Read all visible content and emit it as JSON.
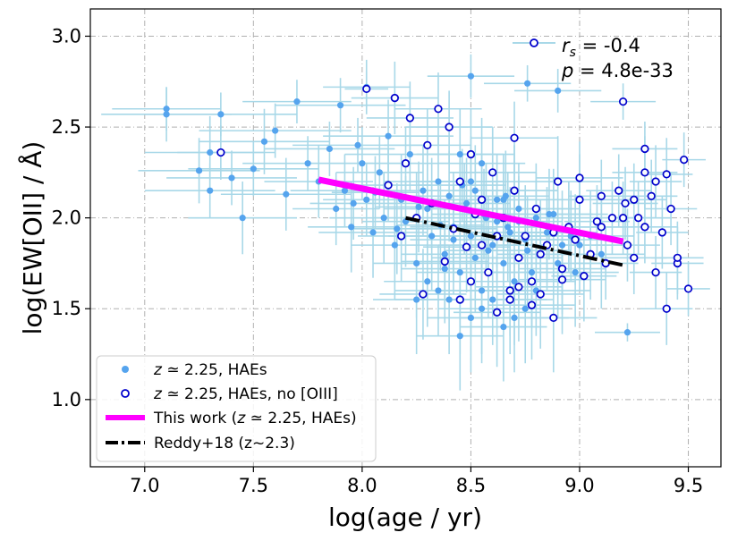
{
  "chart_data": {
    "type": "scatter",
    "xlabel": "log(age / yr)",
    "ylabel": "log(EW[OII] / Å)",
    "xlim": [
      6.75,
      9.65
    ],
    "ylim": [
      0.63,
      3.15
    ],
    "xticks": [
      7.0,
      7.5,
      8.0,
      8.5,
      9.0,
      9.5
    ],
    "xtick_labels": [
      "7.0",
      "7.5",
      "8.0",
      "8.5",
      "9.0",
      "9.5"
    ],
    "yticks": [
      1.0,
      1.5,
      2.0,
      2.5,
      3.0
    ],
    "ytick_labels": [
      "1.0",
      "1.5",
      "2.0",
      "2.5",
      "3.0"
    ],
    "grid": true,
    "grid_style": "dash-dot",
    "annotation": {
      "rs_label": "r",
      "rs_sub": "s",
      "rs_value": " = -0.4",
      "p_label": "p",
      "p_value": " = 4.8e-33"
    },
    "legend_placement": "lower-left",
    "legend": [
      {
        "pre": "z",
        "mid": " ≃ 2.25, HAEs",
        "marker": "filled-circle",
        "color": "#55a4ee"
      },
      {
        "pre": "z",
        "mid": " ≃ 2.25, HAEs, no [OIII]",
        "marker": "open-circle",
        "color": "#0000cc"
      },
      {
        "pre": "This work (",
        "ital": "z",
        "mid": " ≃ 2.25, HAEs)",
        "marker": "line",
        "color": "#ff00ff"
      },
      {
        "pre": "Reddy+18 (z~2.3)",
        "marker": "dashdot-line",
        "color": "#000000"
      }
    ],
    "fit_lines": [
      {
        "name": "This work",
        "x": [
          7.8,
          9.2
        ],
        "y": [
          2.21,
          1.87
        ],
        "color": "#ff00ff",
        "style": "solid"
      },
      {
        "name": "Reddy+18",
        "x": [
          8.2,
          9.2
        ],
        "y": [
          2.0,
          1.74
        ],
        "color": "#000000",
        "style": "dashdot"
      }
    ],
    "series": [
      {
        "name": "z ≃ 2.25, HAEs",
        "marker": "filled",
        "color": "#55a4ee",
        "errcolor": "#a8d8e8",
        "x": [
          7.1,
          7.1,
          7.25,
          7.3,
          7.3,
          7.35,
          7.4,
          7.45,
          7.5,
          7.55,
          7.6,
          7.65,
          7.7,
          7.75,
          7.8,
          7.85,
          7.88,
          7.9,
          7.92,
          7.95,
          7.98,
          8.0,
          8.02,
          8.05,
          8.08,
          8.1,
          8.12,
          8.15,
          8.18,
          8.2,
          8.22,
          8.25,
          8.28,
          8.3,
          8.32,
          8.35,
          8.38,
          8.4,
          8.42,
          8.45,
          8.47,
          8.5,
          8.52,
          8.55,
          8.57,
          8.6,
          8.62,
          8.65,
          8.67,
          8.7,
          8.72,
          8.75,
          8.78,
          8.8,
          8.82,
          8.85,
          8.88,
          8.9,
          8.92,
          8.95,
          8.98,
          9.0,
          9.05,
          9.1,
          8.5,
          8.55,
          8.6,
          8.65,
          8.45,
          8.4,
          8.35,
          8.7,
          8.75,
          8.8,
          8.3,
          8.25,
          8.6,
          8.55,
          8.5,
          8.45,
          8.65,
          8.7,
          8.62,
          8.58,
          8.52,
          8.48,
          8.42,
          8.38,
          8.68,
          8.72,
          8.76,
          8.66,
          8.56,
          8.46,
          8.36,
          8.26,
          8.16,
          8.06,
          7.96,
          8.86,
          8.96,
          9.22,
          8.76,
          8.5,
          8.9,
          8.02
        ],
        "y": [
          2.57,
          2.6,
          2.26,
          2.15,
          2.36,
          2.57,
          2.22,
          2.0,
          2.27,
          2.42,
          2.48,
          2.13,
          2.64,
          2.3,
          2.2,
          2.38,
          2.05,
          2.62,
          2.15,
          1.95,
          2.4,
          2.3,
          2.1,
          1.92,
          2.25,
          2.0,
          2.45,
          1.85,
          2.1,
          1.98,
          2.35,
          1.75,
          2.15,
          2.05,
          1.9,
          2.2,
          1.8,
          2.12,
          1.95,
          1.7,
          2.05,
          1.9,
          2.15,
          1.6,
          2.0,
          1.85,
          2.1,
          1.75,
          1.95,
          1.65,
          2.05,
          1.88,
          1.7,
          2.0,
          1.8,
          1.92,
          2.02,
          1.75,
          1.85,
          1.95,
          1.7,
          1.85,
          1.9,
          1.8,
          1.45,
          1.5,
          1.55,
          1.4,
          1.35,
          1.55,
          1.6,
          1.45,
          1.5,
          1.6,
          1.65,
          1.55,
          2.25,
          2.3,
          2.2,
          2.35,
          2.1,
          2.15,
          1.98,
          1.82,
          1.78,
          2.08,
          1.88,
          1.72,
          1.92,
          1.98,
          1.82,
          2.12,
          2.02,
          2.18,
          1.96,
          2.06,
          1.94,
          2.14,
          2.08,
          2.02,
          1.9,
          1.37,
          2.74,
          2.78,
          2.7,
          2.72
        ],
        "xerr": [
          0.3,
          0.25,
          0.28,
          0.3,
          0.3,
          0.35,
          0.3,
          0.25,
          0.3,
          0.3,
          0.35,
          0.3,
          0.25,
          0.3,
          0.25,
          0.3,
          0.2,
          0.3,
          0.25,
          0.2,
          0.3,
          0.25,
          0.2,
          0.25,
          0.2,
          0.25,
          0.3,
          0.2,
          0.25,
          0.2,
          0.3,
          0.2,
          0.25,
          0.2,
          0.2,
          0.25,
          0.2,
          0.25,
          0.2,
          0.2,
          0.25,
          0.2,
          0.25,
          0.2,
          0.2,
          0.25,
          0.2,
          0.2,
          0.25,
          0.2,
          0.25,
          0.2,
          0.2,
          0.25,
          0.2,
          0.2,
          0.25,
          0.2,
          0.2,
          0.25,
          0.2,
          0.2,
          0.2,
          0.2,
          0.2,
          0.2,
          0.25,
          0.2,
          0.2,
          0.25,
          0.2,
          0.25,
          0.2,
          0.25,
          0.2,
          0.2,
          0.2,
          0.2,
          0.2,
          0.2,
          0.2,
          0.2,
          0.2,
          0.2,
          0.2,
          0.2,
          0.2,
          0.2,
          0.2,
          0.2,
          0.2,
          0.2,
          0.2,
          0.2,
          0.2,
          0.2,
          0.2,
          0.2,
          0.2,
          0.2,
          0.2,
          0.15,
          0.2,
          0.2,
          0.2,
          0.2
        ],
        "yerr": [
          0.15,
          0.12,
          0.18,
          0.15,
          0.2,
          0.12,
          0.15,
          0.2,
          0.15,
          0.18,
          0.15,
          0.2,
          0.12,
          0.15,
          0.2,
          0.15,
          0.2,
          0.15,
          0.2,
          0.25,
          0.15,
          0.2,
          0.2,
          0.25,
          0.2,
          0.25,
          0.2,
          0.3,
          0.25,
          0.25,
          0.2,
          0.3,
          0.25,
          0.25,
          0.3,
          0.25,
          0.3,
          0.25,
          0.3,
          0.3,
          0.25,
          0.3,
          0.25,
          0.35,
          0.3,
          0.3,
          0.25,
          0.3,
          0.3,
          0.35,
          0.25,
          0.3,
          0.3,
          0.25,
          0.3,
          0.25,
          0.25,
          0.3,
          0.3,
          0.25,
          0.3,
          0.25,
          0.25,
          0.3,
          0.3,
          0.3,
          0.25,
          0.3,
          0.3,
          0.3,
          0.25,
          0.3,
          0.3,
          0.25,
          0.25,
          0.3,
          0.25,
          0.25,
          0.25,
          0.25,
          0.25,
          0.25,
          0.25,
          0.3,
          0.3,
          0.25,
          0.3,
          0.3,
          0.25,
          0.25,
          0.3,
          0.25,
          0.25,
          0.2,
          0.25,
          0.25,
          0.25,
          0.2,
          0.2,
          0.25,
          0.25,
          0.05,
          0.1,
          0.12,
          0.12,
          0.15
        ]
      },
      {
        "name": "z ≃ 2.25, HAEs, no [OIII]",
        "marker": "open",
        "color": "#0000cc",
        "x": [
          7.35,
          8.02,
          8.15,
          8.22,
          8.3,
          8.35,
          8.4,
          8.45,
          8.5,
          8.55,
          8.6,
          8.65,
          8.7,
          8.75,
          8.8,
          8.85,
          8.9,
          8.95,
          9.0,
          9.05,
          9.1,
          9.15,
          9.2,
          9.25,
          9.3,
          9.35,
          9.4,
          9.45,
          9.48,
          9.5,
          9.27,
          9.3,
          9.38,
          9.42,
          9.33,
          9.22,
          9.18,
          9.12,
          9.08,
          9.02,
          8.98,
          8.92,
          8.88,
          8.82,
          8.78,
          8.72,
          8.68,
          8.62,
          8.58,
          8.52,
          8.48,
          8.42,
          8.38,
          8.32,
          8.28,
          8.25,
          8.2,
          8.18,
          8.12,
          8.62,
          8.68,
          8.72,
          8.78,
          8.82,
          8.88,
          8.92,
          8.55,
          8.5,
          8.45,
          9.21,
          9.25,
          9.3,
          9.35,
          9.4,
          9.45,
          9.2,
          9.1,
          9.0,
          8.7
        ],
        "y": [
          2.36,
          2.71,
          2.66,
          2.55,
          2.4,
          2.6,
          2.5,
          2.2,
          2.35,
          2.1,
          2.25,
          2.0,
          2.15,
          1.9,
          2.05,
          1.85,
          2.2,
          1.95,
          2.1,
          1.8,
          1.95,
          2.0,
          2.64,
          2.1,
          2.38,
          2.2,
          2.24,
          1.75,
          2.32,
          1.61,
          2.0,
          2.25,
          1.92,
          2.05,
          2.12,
          1.85,
          2.15,
          1.75,
          1.98,
          1.68,
          1.88,
          1.72,
          1.92,
          1.8,
          1.65,
          1.78,
          1.6,
          1.9,
          1.7,
          2.02,
          1.84,
          1.94,
          1.76,
          2.08,
          1.58,
          2.0,
          2.3,
          1.9,
          2.18,
          1.48,
          1.55,
          1.62,
          1.52,
          1.58,
          1.45,
          1.66,
          1.85,
          1.65,
          1.55,
          2.08,
          1.78,
          1.95,
          1.7,
          1.5,
          1.78,
          2.0,
          2.12,
          2.22,
          2.44
        ],
        "xerr": [
          0.2,
          0.1,
          0.2,
          0.2,
          0.2,
          0.2,
          0.2,
          0.2,
          0.2,
          0.2,
          0.2,
          0.2,
          0.2,
          0.2,
          0.2,
          0.2,
          0.2,
          0.2,
          0.2,
          0.2,
          0.15,
          0.15,
          0.15,
          0.15,
          0.15,
          0.12,
          0.12,
          0.12,
          0.1,
          0.1,
          0.15,
          0.15,
          0.12,
          0.12,
          0.12,
          0.15,
          0.15,
          0.15,
          0.15,
          0.15,
          0.2,
          0.2,
          0.2,
          0.2,
          0.2,
          0.2,
          0.2,
          0.2,
          0.2,
          0.2,
          0.2,
          0.2,
          0.2,
          0.2,
          0.2,
          0.2,
          0.2,
          0.2,
          0.2,
          0.2,
          0.2,
          0.2,
          0.2,
          0.2,
          0.2,
          0.2,
          0.2,
          0.2,
          0.2,
          0.15,
          0.15,
          0.15,
          0.12,
          0.12,
          0.12,
          0.15,
          0.15,
          0.2,
          0.2
        ],
        "yerr": [
          0.15,
          0.1,
          0.2,
          0.2,
          0.2,
          0.2,
          0.2,
          0.2,
          0.25,
          0.25,
          0.25,
          0.25,
          0.25,
          0.25,
          0.25,
          0.25,
          0.25,
          0.25,
          0.25,
          0.25,
          0.2,
          0.2,
          0.1,
          0.2,
          0.15,
          0.2,
          0.2,
          0.2,
          0.15,
          0.15,
          0.2,
          0.2,
          0.2,
          0.2,
          0.2,
          0.2,
          0.2,
          0.2,
          0.2,
          0.25,
          0.25,
          0.25,
          0.25,
          0.25,
          0.25,
          0.25,
          0.25,
          0.25,
          0.25,
          0.25,
          0.25,
          0.25,
          0.25,
          0.25,
          0.25,
          0.25,
          0.2,
          0.25,
          0.2,
          0.3,
          0.3,
          0.3,
          0.3,
          0.3,
          0.3,
          0.3,
          0.25,
          0.3,
          0.3,
          0.2,
          0.2,
          0.2,
          0.2,
          0.2,
          0.2,
          0.2,
          0.2,
          0.2,
          0.2
        ]
      }
    ]
  }
}
